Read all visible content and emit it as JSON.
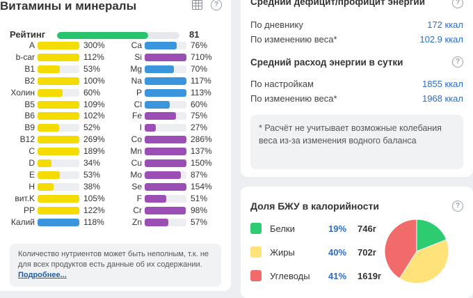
{
  "vitamins_panel": {
    "title": "Витамины и минералы",
    "rating": {
      "label": "Рейтинг",
      "value": "81",
      "fraction": 0.81
    },
    "colors": {
      "yellow": "#f4dc00",
      "blue": "#3a95dd",
      "purple": "#9b4fb5",
      "green": "#27c46d"
    },
    "left_column": [
      {
        "name": "A",
        "pct": "300%",
        "fill": 1.0,
        "color": "#f4dc00"
      },
      {
        "name": "b-car",
        "pct": "112%",
        "fill": 1.0,
        "color": "#f4dc00"
      },
      {
        "name": "B1",
        "pct": "53%",
        "fill": 0.53,
        "color": "#f4dc00"
      },
      {
        "name": "B2",
        "pct": "100%",
        "fill": 1.0,
        "color": "#f4dc00"
      },
      {
        "name": "Холин",
        "pct": "60%",
        "fill": 0.6,
        "color": "#f4dc00"
      },
      {
        "name": "B5",
        "pct": "109%",
        "fill": 1.0,
        "color": "#f4dc00"
      },
      {
        "name": "B6",
        "pct": "102%",
        "fill": 1.0,
        "color": "#f4dc00"
      },
      {
        "name": "B9",
        "pct": "52%",
        "fill": 0.52,
        "color": "#f4dc00"
      },
      {
        "name": "B12",
        "pct": "269%",
        "fill": 1.0,
        "color": "#f4dc00"
      },
      {
        "name": "C",
        "pct": "189%",
        "fill": 1.0,
        "color": "#f4dc00"
      },
      {
        "name": "D",
        "pct": "34%",
        "fill": 0.34,
        "color": "#f4dc00"
      },
      {
        "name": "E",
        "pct": "53%",
        "fill": 0.53,
        "color": "#f4dc00"
      },
      {
        "name": "H",
        "pct": "38%",
        "fill": 0.38,
        "color": "#f4dc00"
      },
      {
        "name": "вит.K",
        "pct": "105%",
        "fill": 1.0,
        "color": "#f4dc00"
      },
      {
        "name": "PP",
        "pct": "122%",
        "fill": 1.0,
        "color": "#f4dc00"
      },
      {
        "name": "Калий",
        "pct": "118%",
        "fill": 1.0,
        "color": "#3a95dd"
      }
    ],
    "right_column": [
      {
        "name": "Ca",
        "pct": "76%",
        "fill": 0.76,
        "color": "#3a95dd"
      },
      {
        "name": "Si",
        "pct": "710%",
        "fill": 1.0,
        "color": "#9b4fb5"
      },
      {
        "name": "Mg",
        "pct": "70%",
        "fill": 0.7,
        "color": "#3a95dd"
      },
      {
        "name": "Na",
        "pct": "117%",
        "fill": 1.0,
        "color": "#3a95dd"
      },
      {
        "name": "P",
        "pct": "113%",
        "fill": 1.0,
        "color": "#3a95dd"
      },
      {
        "name": "Cl",
        "pct": "60%",
        "fill": 0.6,
        "color": "#3a95dd"
      },
      {
        "name": "Fe",
        "pct": "75%",
        "fill": 0.75,
        "color": "#9b4fb5"
      },
      {
        "name": "I",
        "pct": "27%",
        "fill": 0.27,
        "color": "#9b4fb5"
      },
      {
        "name": "Co",
        "pct": "286%",
        "fill": 1.0,
        "color": "#9b4fb5"
      },
      {
        "name": "Mn",
        "pct": "137%",
        "fill": 1.0,
        "color": "#9b4fb5"
      },
      {
        "name": "Cu",
        "pct": "150%",
        "fill": 1.0,
        "color": "#9b4fb5"
      },
      {
        "name": "Mo",
        "pct": "87%",
        "fill": 0.87,
        "color": "#9b4fb5"
      },
      {
        "name": "Se",
        "pct": "154%",
        "fill": 1.0,
        "color": "#9b4fb5"
      },
      {
        "name": "F",
        "pct": "51%",
        "fill": 0.51,
        "color": "#9b4fb5"
      },
      {
        "name": "Cr",
        "pct": "98%",
        "fill": 0.98,
        "color": "#9b4fb5"
      },
      {
        "name": "Zn",
        "pct": "57%",
        "fill": 0.57,
        "color": "#9b4fb5"
      }
    ],
    "note": {
      "text": "Количество нутриентов может быть неполным, т.к. не для всех продуктов есть данные об их содержании. ",
      "link": "Подробнее..."
    },
    "icons": [
      "table-icon",
      "help-icon"
    ]
  },
  "energy_panel": {
    "deficit_title": "Средний дефицит/профицит энергии",
    "by_diary_label": "По дневнику",
    "by_diary_value": "172 ккал",
    "by_weight_label": "По изменению веса*",
    "by_weight_value": "102.9 ккал",
    "expense_title": "Средний расход энергии в сутки",
    "by_settings_label": "По настройкам",
    "by_settings_value": "1855 ккал",
    "by_weight2_label": "По изменению веса*",
    "by_weight2_value": "1968 ккал",
    "disclaimer": "* Расчёт не учитывает возможные колебания веса из-за изменения водного баланса"
  },
  "bju_panel": {
    "title": "Доля БЖУ в калорийности",
    "rows": [
      {
        "name": "Белки",
        "pct": "19%",
        "grams": "746г",
        "color": "#2ecc71",
        "share": 0.19
      },
      {
        "name": "Жиры",
        "pct": "40%",
        "grams": "702г",
        "color": "#ffe27a",
        "share": 0.4
      },
      {
        "name": "Углеводы",
        "pct": "41%",
        "grams": "1619г",
        "color": "#f26b6b",
        "share": 0.41
      }
    ]
  }
}
